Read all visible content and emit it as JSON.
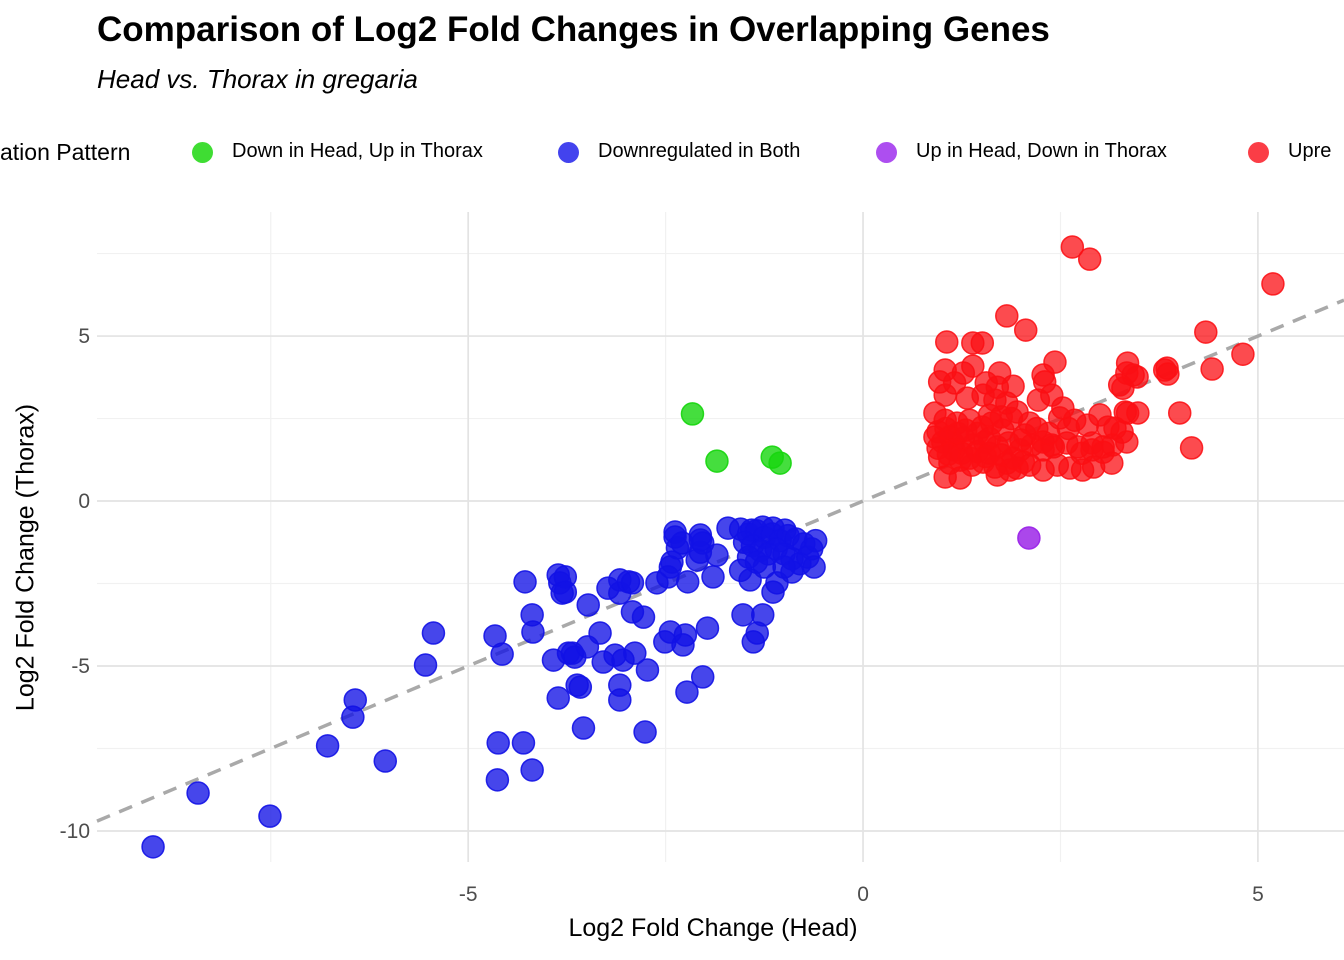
{
  "header": {
    "title": "Comparison of Log2 Fold Changes in Overlapping Genes",
    "subtitle": "Head vs. Thorax in gregaria"
  },
  "chart_data": {
    "type": "scatter",
    "title": "Comparison of Log2 Fold Changes in Overlapping Genes",
    "subtitle": "Head vs. Thorax in gregaria",
    "xlabel": "Log2 Fold Change (Head)",
    "ylabel": "Log2 Fold Change (Thorax)",
    "legend_title": "ation Pattern",
    "legend_position": "top",
    "grid": true,
    "xlim": [
      -9.7,
      6.09
    ],
    "ylim": [
      -10.94,
      8.76
    ],
    "x_major_ticks": [
      -5,
      0,
      5
    ],
    "x_minor_ticks": [
      -7.5,
      -2.5,
      2.5
    ],
    "y_major_ticks": [
      5,
      0,
      -5,
      -10
    ],
    "y_minor_ticks": [
      7.5,
      2.5,
      -2.5,
      -7.5
    ],
    "reference_line": {
      "type": "identity",
      "style": "dashed",
      "color": "#a9a9a9"
    },
    "colors": {
      "background": "#ffffff",
      "grid_major": "#e3e3e3",
      "grid_minor": "#f1f1f1",
      "tick_label": "#4d4d4d",
      "text": "#000000"
    },
    "point_radius": 11,
    "series": [
      {
        "label": "Down in Head, Up in Thorax",
        "color": "#17d60e",
        "legend_color": "#3fdd33",
        "opacity": 0.8,
        "points": [
          [
            -2.16,
            2.64
          ],
          [
            -1.85,
            1.21
          ],
          [
            -1.15,
            1.33
          ],
          [
            -1.05,
            1.15
          ]
        ]
      },
      {
        "label": "Downregulated in Both",
        "color": "#1212e6",
        "legend_color": "#4343ee",
        "opacity": 0.78,
        "points": [
          [
            -8.99,
            -10.48
          ],
          [
            -8.42,
            -8.85
          ],
          [
            -7.51,
            -9.55
          ],
          [
            -6.78,
            -7.42
          ],
          [
            -6.43,
            -6.03
          ],
          [
            -6.46,
            -6.55
          ],
          [
            -6.05,
            -7.88
          ],
          [
            -5.54,
            -4.97
          ],
          [
            -5.44,
            -4.0
          ],
          [
            -4.66,
            -4.09
          ],
          [
            -4.57,
            -4.64
          ],
          [
            -4.19,
            -3.45
          ],
          [
            -4.18,
            -3.97
          ],
          [
            -4.28,
            -2.45
          ],
          [
            -3.84,
            -2.48
          ],
          [
            -3.81,
            -2.79
          ],
          [
            -3.68,
            -4.61
          ],
          [
            -3.92,
            -4.82
          ],
          [
            -3.62,
            -5.58
          ],
          [
            -3.86,
            -5.97
          ],
          [
            -4.3,
            -7.33
          ],
          [
            -4.62,
            -7.33
          ],
          [
            -4.63,
            -8.45
          ],
          [
            -4.19,
            -8.15
          ],
          [
            -3.86,
            -2.24
          ],
          [
            -3.73,
            -4.61
          ],
          [
            -3.65,
            -4.73
          ],
          [
            -3.49,
            -4.42
          ],
          [
            -3.29,
            -4.88
          ],
          [
            -3.14,
            -4.67
          ],
          [
            -3.04,
            -4.82
          ],
          [
            -2.89,
            -4.61
          ],
          [
            -2.73,
            -5.12
          ],
          [
            -3.58,
            -5.64
          ],
          [
            -3.08,
            -5.58
          ],
          [
            -3.08,
            -6.03
          ],
          [
            -3.54,
            -6.88
          ],
          [
            -2.76,
            -7.0
          ],
          [
            -2.23,
            -5.79
          ],
          [
            -2.03,
            -5.33
          ],
          [
            -2.28,
            -4.36
          ],
          [
            -2.51,
            -4.27
          ],
          [
            -1.39,
            -4.27
          ],
          [
            -2.38,
            -1.09
          ],
          [
            -2.06,
            -1.18
          ],
          [
            -2.35,
            -1.42
          ],
          [
            -2.06,
            -1.55
          ],
          [
            -2.44,
            -2.0
          ],
          [
            -2.97,
            -2.45
          ],
          [
            -3.08,
            -2.79
          ],
          [
            -2.92,
            -3.36
          ],
          [
            -2.78,
            -3.52
          ],
          [
            -3.48,
            -3.15
          ],
          [
            -3.77,
            -2.3
          ],
          [
            -3.77,
            -2.76
          ],
          [
            -3.33,
            -4.0
          ],
          [
            -2.44,
            -3.97
          ],
          [
            -2.25,
            -4.06
          ],
          [
            -1.97,
            -3.85
          ],
          [
            -1.52,
            -3.45
          ],
          [
            -1.27,
            -3.45
          ],
          [
            -1.34,
            -4.0
          ],
          [
            -1.14,
            -2.76
          ],
          [
            -2.38,
            -0.94
          ],
          [
            -2.06,
            -1.03
          ],
          [
            -1.71,
            -0.82
          ],
          [
            -1.41,
            -0.88
          ],
          [
            -1.27,
            -0.79
          ],
          [
            -1.14,
            -0.82
          ],
          [
            -0.99,
            -0.88
          ],
          [
            -2.29,
            -1.27
          ],
          [
            -2.03,
            -1.27
          ],
          [
            -2.42,
            -1.85
          ],
          [
            -2.1,
            -1.79
          ],
          [
            -1.85,
            -1.64
          ],
          [
            -2.47,
            -2.3
          ],
          [
            -2.22,
            -2.45
          ],
          [
            -1.9,
            -2.3
          ],
          [
            -2.61,
            -2.48
          ],
          [
            -3.08,
            -2.39
          ],
          [
            -2.92,
            -2.48
          ],
          [
            -3.23,
            -2.64
          ],
          [
            -1.43,
            -2.39
          ],
          [
            -1.09,
            -2.48
          ],
          [
            -0.9,
            -2.15
          ],
          [
            -1.55,
            -0.85
          ],
          [
            -1.45,
            -1.0
          ],
          [
            -1.35,
            -0.9
          ],
          [
            -1.25,
            -1.1
          ],
          [
            -1.15,
            -1.0
          ],
          [
            -1.05,
            -1.2
          ],
          [
            -0.95,
            -1.05
          ],
          [
            -0.85,
            -1.15
          ],
          [
            -0.75,
            -1.3
          ],
          [
            -0.65,
            -1.45
          ],
          [
            -1.5,
            -1.25
          ],
          [
            -1.4,
            -1.35
          ],
          [
            -1.3,
            -1.5
          ],
          [
            -1.2,
            -1.6
          ],
          [
            -1.1,
            -1.45
          ],
          [
            -1.0,
            -1.6
          ],
          [
            -0.9,
            -1.75
          ],
          [
            -0.8,
            -1.9
          ],
          [
            -1.45,
            -1.7
          ],
          [
            -1.35,
            -1.85
          ],
          [
            -1.25,
            -2.0
          ],
          [
            -1.55,
            -2.1
          ],
          [
            -1.0,
            -2.0
          ],
          [
            -0.7,
            -1.7
          ],
          [
            -0.62,
            -2.0
          ],
          [
            -0.6,
            -1.2
          ]
        ]
      },
      {
        "label": "Up in Head, Down in Thorax",
        "color": "#9c27e8",
        "legend_color": "#ad4ef0",
        "opacity": 0.85,
        "points": [
          [
            2.1,
            -1.12
          ]
        ]
      },
      {
        "label": "Upre",
        "color": "#fb0f14",
        "legend_color": "#fb3d46",
        "opacity": 0.75,
        "points": [
          [
            2.65,
            7.7
          ],
          [
            2.87,
            7.33
          ],
          [
            5.19,
            6.58
          ],
          [
            1.82,
            5.61
          ],
          [
            2.06,
            5.18
          ],
          [
            4.34,
            5.12
          ],
          [
            1.06,
            4.82
          ],
          [
            1.39,
            4.79
          ],
          [
            1.51,
            4.79
          ],
          [
            4.81,
            4.45
          ],
          [
            4.42,
            4.0
          ],
          [
            3.82,
            3.97
          ],
          [
            1.04,
            3.97
          ],
          [
            1.27,
            3.88
          ],
          [
            1.39,
            4.09
          ],
          [
            1.73,
            3.88
          ],
          [
            2.28,
            3.82
          ],
          [
            2.43,
            4.21
          ],
          [
            3.35,
            4.18
          ],
          [
            3.42,
            3.82
          ],
          [
            3.85,
            4.03
          ],
          [
            0.97,
            3.61
          ],
          [
            1.16,
            3.58
          ],
          [
            1.56,
            3.58
          ],
          [
            1.7,
            3.45
          ],
          [
            1.9,
            3.48
          ],
          [
            2.3,
            3.61
          ],
          [
            3.25,
            3.52
          ],
          [
            3.47,
            3.76
          ],
          [
            3.34,
            3.88
          ],
          [
            3.86,
            3.85
          ],
          [
            1.04,
            3.21
          ],
          [
            1.32,
            3.12
          ],
          [
            1.52,
            3.21
          ],
          [
            1.67,
            3.06
          ],
          [
            1.82,
            2.97
          ],
          [
            2.22,
            3.06
          ],
          [
            2.39,
            3.21
          ],
          [
            2.53,
            2.82
          ],
          [
            3.0,
            2.61
          ],
          [
            3.32,
            2.7
          ],
          [
            3.29,
            3.42
          ],
          [
            0.91,
            2.67
          ],
          [
            1.04,
            2.45
          ],
          [
            1.19,
            2.36
          ],
          [
            1.35,
            2.45
          ],
          [
            1.51,
            2.24
          ],
          [
            1.63,
            2.36
          ],
          [
            1.77,
            2.15
          ],
          [
            1.95,
            2.7
          ],
          [
            2.11,
            2.36
          ],
          [
            2.49,
            2.52
          ],
          [
            2.68,
            2.45
          ],
          [
            2.84,
            2.3
          ],
          [
            3.1,
            2.24
          ],
          [
            3.35,
            2.67
          ],
          [
            3.48,
            2.67
          ],
          [
            4.01,
            2.67
          ],
          [
            3.19,
            2.21
          ],
          [
            3.28,
            2.09
          ],
          [
            0.91,
            1.94
          ],
          [
            1.01,
            1.79
          ],
          [
            1.14,
            1.76
          ],
          [
            1.27,
            1.91
          ],
          [
            1.39,
            1.7
          ],
          [
            1.54,
            1.79
          ],
          [
            1.7,
            1.64
          ],
          [
            1.84,
            1.76
          ],
          [
            1.99,
            1.55
          ],
          [
            2.14,
            1.7
          ],
          [
            2.28,
            1.79
          ],
          [
            2.41,
            1.64
          ],
          [
            2.58,
            1.76
          ],
          [
            2.72,
            1.64
          ],
          [
            2.9,
            1.76
          ],
          [
            3.04,
            1.64
          ],
          [
            3.16,
            1.7
          ],
          [
            3.34,
            1.79
          ],
          [
            4.16,
            1.61
          ],
          [
            0.97,
            1.33
          ],
          [
            1.1,
            1.15
          ],
          [
            1.23,
            1.24
          ],
          [
            1.38,
            1.09
          ],
          [
            1.52,
            1.18
          ],
          [
            1.67,
            1.03
          ],
          [
            1.82,
            1.15
          ],
          [
            1.95,
            1.0
          ],
          [
            2.11,
            1.09
          ],
          [
            2.28,
            0.94
          ],
          [
            2.46,
            1.09
          ],
          [
            2.62,
            1.0
          ],
          [
            2.78,
            0.94
          ],
          [
            2.92,
            1.03
          ],
          [
            3.15,
            1.15
          ],
          [
            2.77,
            1.45
          ],
          [
            2.9,
            1.55
          ],
          [
            3.04,
            1.48
          ],
          [
            1.04,
            0.73
          ],
          [
            1.23,
            0.7
          ],
          [
            1.7,
            0.79
          ],
          [
            1.86,
            0.94
          ],
          [
            2.03,
            1.18
          ],
          [
            2.28,
            1.55
          ],
          [
            2.39,
            1.7
          ],
          [
            0.95,
            2.1
          ],
          [
            1.05,
            2.2
          ],
          [
            1.1,
            1.95
          ],
          [
            1.2,
            2.05
          ],
          [
            1.3,
            2.15
          ],
          [
            1.15,
            1.55
          ],
          [
            1.25,
            1.45
          ],
          [
            1.45,
            1.5
          ],
          [
            1.6,
            1.45
          ],
          [
            1.75,
            1.4
          ],
          [
            1.9,
            1.3
          ],
          [
            2.0,
            1.85
          ],
          [
            2.05,
            2.0
          ],
          [
            1.6,
            1.9
          ],
          [
            1.45,
            2.05
          ],
          [
            1.35,
            1.3
          ],
          [
            1.55,
            1.35
          ],
          [
            0.95,
            1.6
          ],
          [
            1.08,
            1.42
          ],
          [
            2.2,
            2.2
          ],
          [
            2.35,
            2.05
          ],
          [
            1.88,
            2.5
          ],
          [
            2.6,
            2.2
          ],
          [
            1.6,
            2.6
          ],
          [
            1.75,
            2.55
          ]
        ]
      }
    ]
  }
}
